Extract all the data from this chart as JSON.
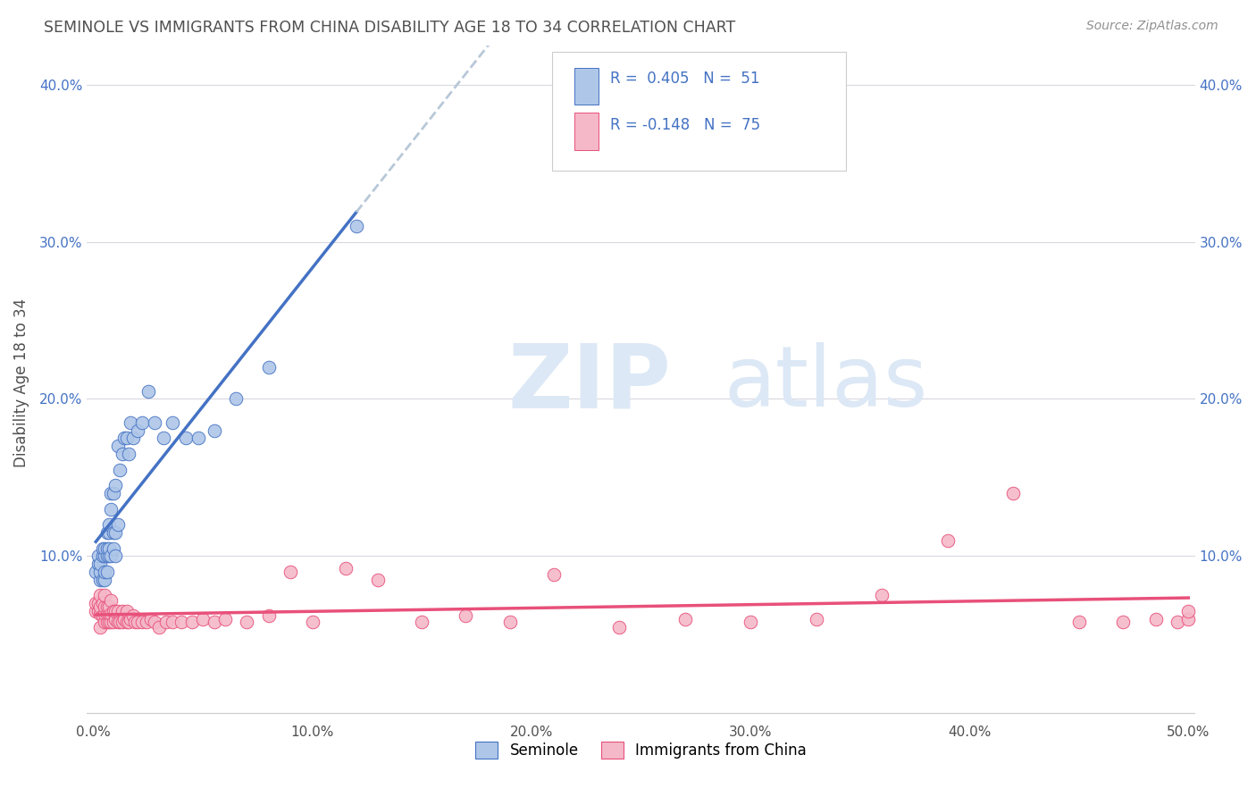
{
  "title": "SEMINOLE VS IMMIGRANTS FROM CHINA DISABILITY AGE 18 TO 34 CORRELATION CHART",
  "source": "Source: ZipAtlas.com",
  "ylabel": "Disability Age 18 to 34",
  "xlim": [
    -0.003,
    0.503
  ],
  "ylim": [
    -0.005,
    0.425
  ],
  "xticks": [
    0.0,
    0.1,
    0.2,
    0.3,
    0.4,
    0.5
  ],
  "xticklabels": [
    "0.0%",
    "10.0%",
    "20.0%",
    "30.0%",
    "40.0%",
    "50.0%"
  ],
  "yticks": [
    0.0,
    0.1,
    0.2,
    0.3,
    0.4
  ],
  "yticklabels_left": [
    "",
    "10.0%",
    "20.0%",
    "30.0%",
    "40.0%"
  ],
  "yticklabels_right": [
    "",
    "10.0%",
    "20.0%",
    "30.0%",
    "40.0%"
  ],
  "legend_labels": [
    "Seminole",
    "Immigrants from China"
  ],
  "r_seminole": "0.405",
  "n_seminole": "51",
  "r_china": "-0.148",
  "n_china": "75",
  "color_seminole": "#aec6e8",
  "color_china": "#f4b8c8",
  "line_color_seminole": "#4472c4",
  "line_color_china": "#e8507a",
  "line_color_dashed": "#b8c8d8",
  "background_color": "#ffffff",
  "grid_color": "#d8d8e0",
  "title_color": "#505050",
  "legend_r_color": "#4472c4",
  "watermark_color": "#dce8f5",
  "seminole_x": [
    0.001,
    0.002,
    0.002,
    0.003,
    0.003,
    0.003,
    0.004,
    0.004,
    0.004,
    0.005,
    0.005,
    0.005,
    0.005,
    0.006,
    0.006,
    0.006,
    0.006,
    0.007,
    0.007,
    0.007,
    0.007,
    0.008,
    0.008,
    0.008,
    0.009,
    0.009,
    0.009,
    0.01,
    0.01,
    0.01,
    0.011,
    0.011,
    0.012,
    0.013,
    0.014,
    0.015,
    0.016,
    0.017,
    0.018,
    0.02,
    0.022,
    0.025,
    0.028,
    0.032,
    0.036,
    0.042,
    0.048,
    0.055,
    0.065,
    0.08,
    0.12
  ],
  "seminole_y": [
    0.09,
    0.095,
    0.1,
    0.085,
    0.09,
    0.095,
    0.085,
    0.1,
    0.105,
    0.085,
    0.09,
    0.1,
    0.105,
    0.09,
    0.1,
    0.105,
    0.115,
    0.1,
    0.105,
    0.115,
    0.12,
    0.1,
    0.13,
    0.14,
    0.105,
    0.115,
    0.14,
    0.1,
    0.115,
    0.145,
    0.12,
    0.17,
    0.155,
    0.165,
    0.175,
    0.175,
    0.165,
    0.185,
    0.175,
    0.18,
    0.185,
    0.205,
    0.185,
    0.175,
    0.185,
    0.175,
    0.175,
    0.18,
    0.2,
    0.22,
    0.31
  ],
  "china_x": [
    0.001,
    0.001,
    0.002,
    0.002,
    0.003,
    0.003,
    0.003,
    0.003,
    0.004,
    0.004,
    0.005,
    0.005,
    0.005,
    0.005,
    0.006,
    0.006,
    0.006,
    0.007,
    0.007,
    0.007,
    0.008,
    0.008,
    0.008,
    0.009,
    0.009,
    0.01,
    0.01,
    0.011,
    0.011,
    0.012,
    0.013,
    0.013,
    0.014,
    0.015,
    0.015,
    0.016,
    0.017,
    0.018,
    0.019,
    0.02,
    0.022,
    0.024,
    0.026,
    0.028,
    0.03,
    0.033,
    0.036,
    0.04,
    0.045,
    0.05,
    0.055,
    0.06,
    0.07,
    0.08,
    0.09,
    0.1,
    0.115,
    0.13,
    0.15,
    0.17,
    0.19,
    0.21,
    0.24,
    0.27,
    0.3,
    0.33,
    0.36,
    0.39,
    0.42,
    0.45,
    0.47,
    0.485,
    0.495,
    0.5,
    0.5
  ],
  "china_y": [
    0.065,
    0.07,
    0.065,
    0.07,
    0.055,
    0.063,
    0.068,
    0.075,
    0.062,
    0.07,
    0.058,
    0.063,
    0.068,
    0.075,
    0.058,
    0.063,
    0.068,
    0.058,
    0.063,
    0.068,
    0.058,
    0.063,
    0.072,
    0.058,
    0.065,
    0.06,
    0.065,
    0.058,
    0.065,
    0.058,
    0.058,
    0.065,
    0.06,
    0.058,
    0.065,
    0.058,
    0.06,
    0.062,
    0.058,
    0.058,
    0.058,
    0.058,
    0.06,
    0.058,
    0.055,
    0.058,
    0.058,
    0.058,
    0.058,
    0.06,
    0.058,
    0.06,
    0.058,
    0.062,
    0.09,
    0.058,
    0.092,
    0.085,
    0.058,
    0.062,
    0.058,
    0.088,
    0.055,
    0.06,
    0.058,
    0.06,
    0.075,
    0.11,
    0.14,
    0.058,
    0.058,
    0.06,
    0.058,
    0.06,
    0.065
  ]
}
